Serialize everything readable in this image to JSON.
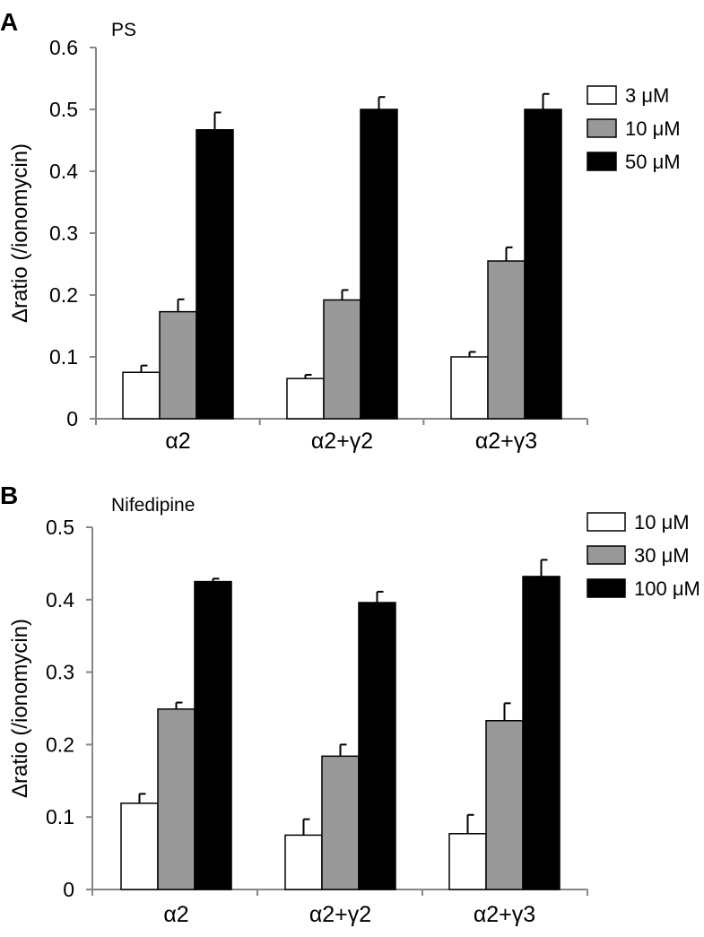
{
  "chart_data": [
    {
      "panel_label": "A",
      "type": "bar",
      "title": "PS",
      "ylabel": "Δratio (/ionomycin)",
      "xlabel": "",
      "ylim": [
        0,
        0.6
      ],
      "yticks": [
        "0",
        "0.1",
        "0.2",
        "0.3",
        "0.4",
        "0.5",
        "0.6"
      ],
      "categories": [
        "α2",
        "α2+γ2",
        "α2+γ3"
      ],
      "legend_position": "top-right",
      "grid": false,
      "series": [
        {
          "name": "3 μM",
          "color": "#ffffff",
          "values": [
            0.075,
            0.065,
            0.1
          ],
          "errors": [
            0.011,
            0.006,
            0.008
          ]
        },
        {
          "name": "10 μM",
          "color": "#999999",
          "values": [
            0.173,
            0.192,
            0.255
          ],
          "errors": [
            0.02,
            0.016,
            0.022
          ]
        },
        {
          "name": "50 μM",
          "color": "#000000",
          "values": [
            0.467,
            0.5,
            0.5
          ],
          "errors": [
            0.028,
            0.02,
            0.025
          ]
        }
      ]
    },
    {
      "panel_label": "B",
      "type": "bar",
      "title": "Nifedipine",
      "ylabel": "Δratio (/ionomycin)",
      "xlabel": "",
      "ylim": [
        0,
        0.5
      ],
      "yticks": [
        "0",
        "0.1",
        "0.2",
        "0.3",
        "0.4",
        "0.5"
      ],
      "categories": [
        "α2",
        "α2+γ2",
        "α2+γ3"
      ],
      "legend_position": "top-right",
      "grid": false,
      "series": [
        {
          "name": "10 μM",
          "color": "#ffffff",
          "values": [
            0.119,
            0.075,
            0.077
          ],
          "errors": [
            0.013,
            0.022,
            0.026
          ]
        },
        {
          "name": "30 μM",
          "color": "#999999",
          "values": [
            0.249,
            0.184,
            0.233
          ],
          "errors": [
            0.009,
            0.016,
            0.024
          ]
        },
        {
          "name": "100 μM",
          "color": "#000000",
          "values": [
            0.425,
            0.396,
            0.432
          ],
          "errors": [
            0.004,
            0.015,
            0.023
          ]
        }
      ]
    }
  ]
}
